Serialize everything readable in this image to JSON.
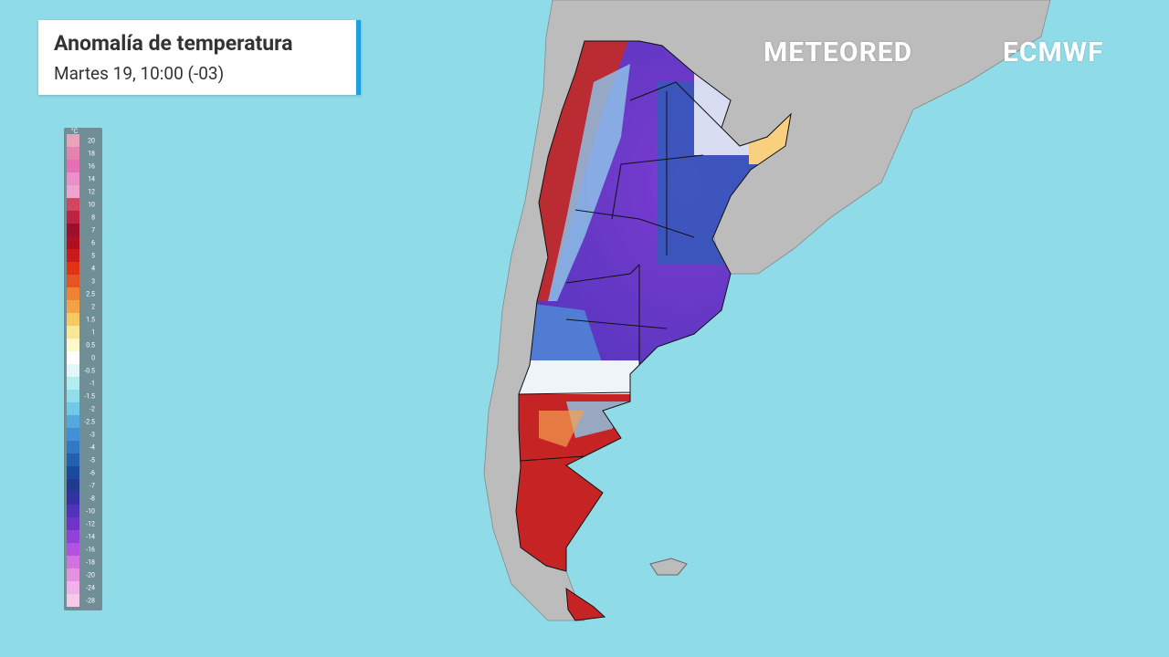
{
  "header": {
    "title": "Anomalía de temperatura",
    "subtitle": "Martes 19, 10:00 (-03)"
  },
  "logos": {
    "provider": "METEORED",
    "model": "ECMWF"
  },
  "legend": {
    "unit": "°C",
    "items": [
      {
        "label": "20",
        "color": "#e9a3bb"
      },
      {
        "label": "18",
        "color": "#e383ae"
      },
      {
        "label": "16",
        "color": "#e46fb3"
      },
      {
        "label": "14",
        "color": "#ea8fc9"
      },
      {
        "label": "12",
        "color": "#eea4cf"
      },
      {
        "label": "10",
        "color": "#d24563"
      },
      {
        "label": "8",
        "color": "#bf2343"
      },
      {
        "label": "7",
        "color": "#9e0f2e"
      },
      {
        "label": "6",
        "color": "#ae1021"
      },
      {
        "label": "5",
        "color": "#c81a1a"
      },
      {
        "label": "4",
        "color": "#e03214"
      },
      {
        "label": "3",
        "color": "#e55522"
      },
      {
        "label": "2.5",
        "color": "#f08333"
      },
      {
        "label": "2",
        "color": "#f2a444"
      },
      {
        "label": "1.5",
        "color": "#f7c963"
      },
      {
        "label": "1",
        "color": "#f8e794"
      },
      {
        "label": "0.5",
        "color": "#fff8cb"
      },
      {
        "label": "0",
        "color": "#ffffff"
      },
      {
        "label": "-0.5",
        "color": "#e2f8f8"
      },
      {
        "label": "-1",
        "color": "#b2eef1"
      },
      {
        "label": "-1.5",
        "color": "#93dde9"
      },
      {
        "label": "-2",
        "color": "#72c8e8"
      },
      {
        "label": "-2.5",
        "color": "#52a9e0"
      },
      {
        "label": "-3",
        "color": "#4291d7"
      },
      {
        "label": "-4",
        "color": "#3179c7"
      },
      {
        "label": "-5",
        "color": "#2261b0"
      },
      {
        "label": "-6",
        "color": "#1a49a0"
      },
      {
        "label": "-7",
        "color": "#213a90"
      },
      {
        "label": "-8",
        "color": "#3232a2"
      },
      {
        "label": "-10",
        "color": "#5132b9"
      },
      {
        "label": "-12",
        "color": "#7032c8"
      },
      {
        "label": "-14",
        "color": "#9242d8"
      },
      {
        "label": "-16",
        "color": "#b252e1"
      },
      {
        "label": "-18",
        "color": "#d271e0"
      },
      {
        "label": "-20",
        "color": "#e391e0"
      },
      {
        "label": "-24",
        "color": "#f0b2e8"
      },
      {
        "label": "-28",
        "color": "#f7c9e8"
      }
    ]
  }
}
